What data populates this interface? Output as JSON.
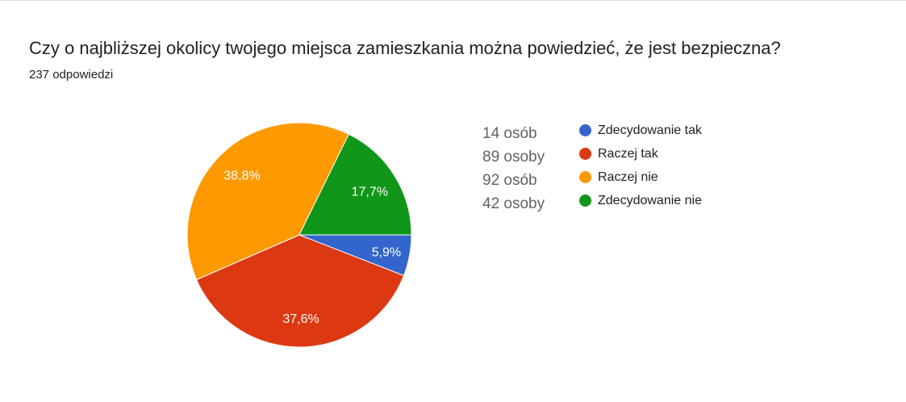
{
  "question": {
    "title": "Czy o najbliższej okolicy twojego miejsca zamieszkania można powiedzieć, że jest bezpieczna?",
    "responses": "237 odpowiedzi"
  },
  "legend": [
    {
      "count": "14 osób",
      "label": "Zdecydowanie tak",
      "color": "#3366cc"
    },
    {
      "count": "89 osoby",
      "label": "Raczej tak",
      "color": "#dc3912"
    },
    {
      "count": "92 osób",
      "label": "Raczej nie",
      "color": "#ff9900"
    },
    {
      "count": "42 osoby",
      "label": "Zdecydowanie nie",
      "color": "#109618"
    }
  ],
  "chart_data": {
    "type": "pie",
    "categories": [
      "Zdecydowanie tak",
      "Raczej tak",
      "Raczej nie",
      "Zdecydowanie nie"
    ],
    "values": [
      14,
      89,
      92,
      42
    ],
    "percent_labels": [
      "5,9%",
      "37,6%",
      "38,8%",
      "17,7%"
    ],
    "colors": [
      "#3366cc",
      "#dc3912",
      "#ff9900",
      "#109618"
    ],
    "total": 237,
    "legend_position": "right"
  }
}
